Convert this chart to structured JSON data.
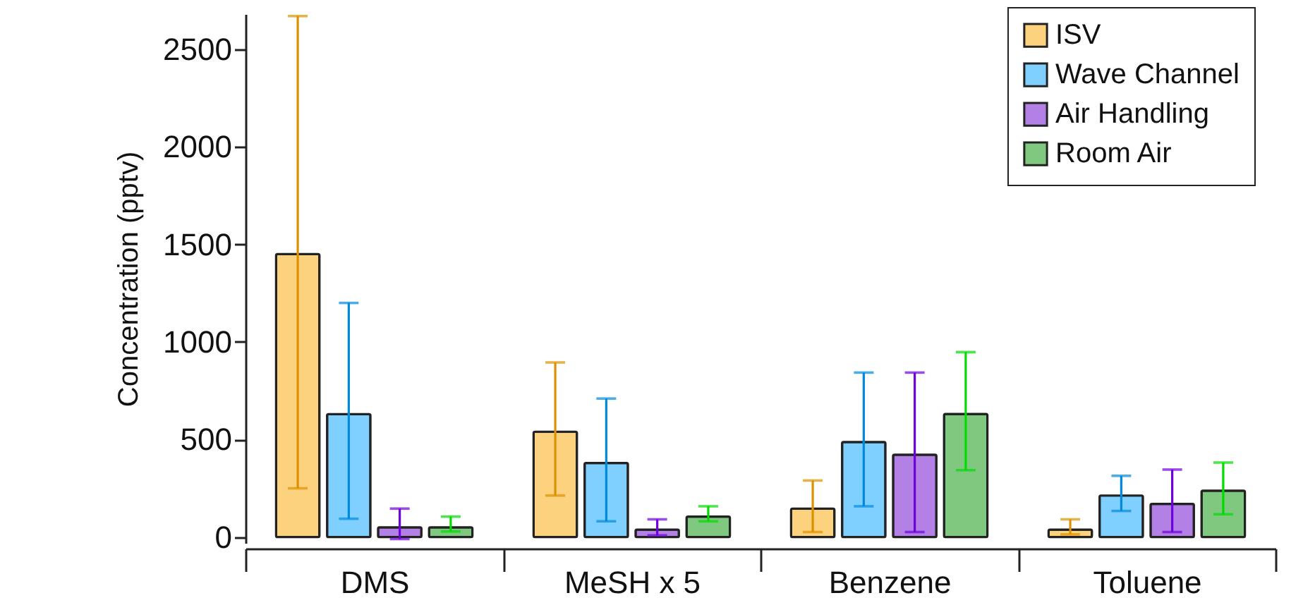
{
  "chart_data": {
    "type": "bar",
    "ylabel": "Concentration (pptv)",
    "categories": [
      "DMS",
      "MeSH x 5",
      "Benzene",
      "Toluene"
    ],
    "series": [
      {
        "name": "ISV",
        "color": "#fdd27e",
        "values": [
          1450,
          540,
          146,
          38
        ],
        "errors": [
          [
            250,
            2670
          ],
          [
            213,
            895
          ],
          [
            26,
            290
          ],
          [
            14,
            91
          ]
        ]
      },
      {
        "name": "Wave Channel",
        "color": "#80d0ff",
        "values": [
          630,
          380,
          487,
          213
        ],
        "errors": [
          [
            94,
            1200
          ],
          [
            81,
            710
          ],
          [
            158,
            843
          ],
          [
            134,
            314
          ]
        ]
      },
      {
        "name": "Air Handling",
        "color": "#b380e6",
        "values": [
          50,
          38,
          422,
          170
        ],
        "errors": [
          [
            -10,
            146
          ],
          [
            9,
            91
          ],
          [
            26,
            843
          ],
          [
            26,
            346
          ]
        ]
      },
      {
        "name": "Room Air",
        "color": "#80c880",
        "values": [
          50,
          105,
          631,
          238
        ],
        "errors": [
          [
            29,
            105
          ],
          [
            81,
            158
          ],
          [
            343,
            948
          ],
          [
            117,
            382
          ]
        ]
      }
    ],
    "ylim": [
      -30,
      2680
    ],
    "yticks": [
      0,
      500,
      1000,
      1500,
      2000,
      2500
    ],
    "grid": false,
    "legend": "top right"
  }
}
